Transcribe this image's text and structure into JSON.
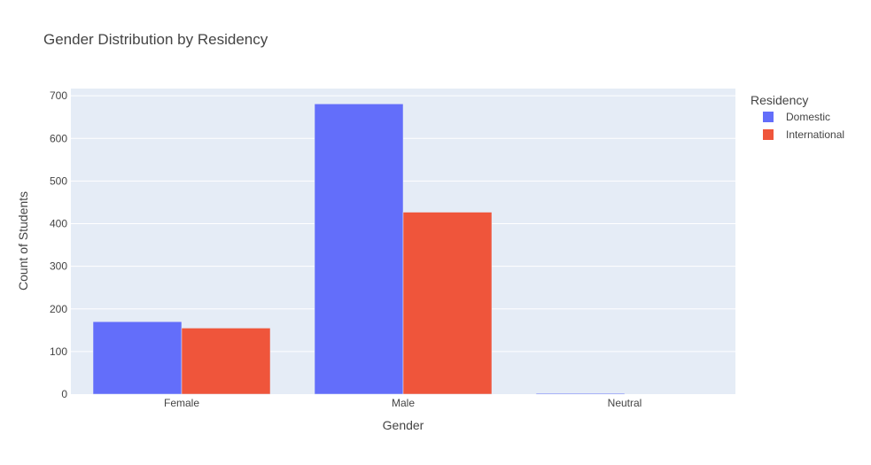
{
  "chart_data": {
    "type": "bar",
    "title": "Gender Distribution by Residency",
    "xlabel": "Gender",
    "ylabel": "Count of Students",
    "categories": [
      "Female",
      "Male",
      "Neutral"
    ],
    "series": [
      {
        "name": "Domestic",
        "values": [
          170,
          681,
          2
        ],
        "color": "#636efa"
      },
      {
        "name": "International",
        "values": [
          155,
          427,
          0
        ],
        "color": "#ef553b"
      }
    ],
    "ylim": [
      0,
      717
    ],
    "yticks": [
      0,
      100,
      200,
      300,
      400,
      500,
      600,
      700
    ],
    "legend": {
      "title": "Residency",
      "placement": "top-right"
    },
    "grid": true,
    "colors": {
      "plot_background": "#e5ecf6",
      "grid": "#ffffff",
      "text": "#444444"
    }
  }
}
